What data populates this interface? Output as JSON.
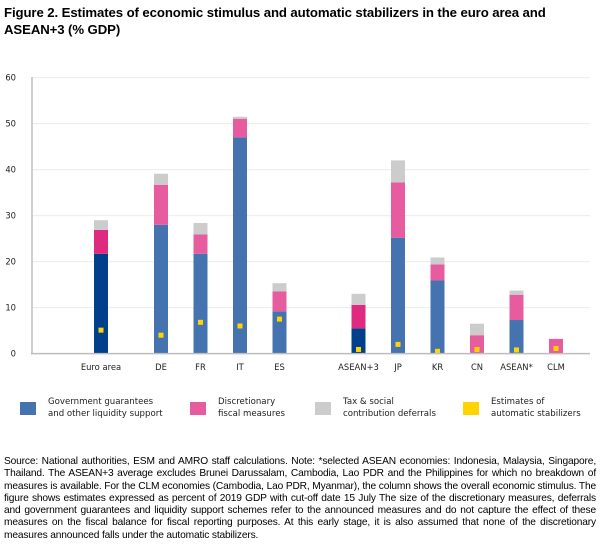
{
  "figure": {
    "title": "Figure 2. Estimates of economic stimulus and automatic stabilizers in the euro area and ASEAN+3 (% GDP)",
    "note": "Source: National authorities, ESM and AMRO staff calculations. Note: *selected ASEAN economies: Indonesia, Malaysia, Singapore, Thailand. The ASEAN+3 average excludes Brunei Darussalam, Cambodia, Lao PDR and the Philippines for which no breakdown of measures is available. For the CLM economies (Cambodia, Lao PDR, Myanmar), the column shows the overall economic stimulus. The figure shows estimates expressed as percent of 2019 GDP with cut-off date 15 July The size of the discretionary measures, deferrals and government guarantees and liquidity support schemes refer to the announced measures and do not capture the effect of these measures on the fiscal balance for fiscal reporting purposes. At this early stage, it is also assumed that none of the discretionary measures announced falls under the automatic stabilizers."
  },
  "colors": {
    "guarantees": "#4473b0",
    "guarantees_aggregate": "#003f8c",
    "discretionary": "#e65c9f",
    "discretionary_aggregate": "#de2b80",
    "deferrals": "#cccccc",
    "stabilizers": "#ffd400"
  },
  "chart_data": {
    "type": "bar",
    "stacked": true,
    "title": "Estimates of economic stimulus and automatic stabilizers in the euro area and ASEAN+3 (% GDP)",
    "xlabel": "",
    "ylabel": "",
    "ylim": [
      0,
      60
    ],
    "yticks": [
      0,
      10,
      20,
      30,
      40,
      50,
      60
    ],
    "grid": true,
    "legend_position": "bottom",
    "categories": [
      "Euro area",
      "DE",
      "FR",
      "IT",
      "ES",
      "ASEAN+3",
      "JP",
      "KR",
      "CN",
      "ASEAN*",
      "CLM"
    ],
    "aggregate_categories": [
      "Euro area",
      "ASEAN+3"
    ],
    "group_gap_after": [
      "ES"
    ],
    "series": [
      {
        "name": "Government guarantees and other liquidity support",
        "legend_label": "Government guarantees\nand other liquidity support",
        "kind": "stack",
        "color_key": "guarantees",
        "values": [
          21.7,
          28.0,
          21.7,
          47.0,
          9.2,
          5.5,
          25.2,
          15.9,
          0.2,
          7.3,
          0
        ]
      },
      {
        "name": "Discretionary fiscal measures",
        "legend_label": "Discretionary\nfiscal measures",
        "kind": "stack",
        "color_key": "discretionary",
        "values": [
          5.2,
          8.7,
          4.2,
          4.0,
          4.3,
          5.1,
          12.0,
          3.5,
          3.8,
          5.5,
          3.2
        ]
      },
      {
        "name": "Tax & social contribution deferrals",
        "legend_label": "Tax & social\ncontribution deferrals",
        "kind": "stack",
        "color_key": "deferrals",
        "values": [
          2.1,
          2.4,
          2.5,
          0.5,
          1.8,
          2.4,
          4.8,
          1.5,
          2.5,
          0.9,
          0
        ]
      },
      {
        "name": "Estimates of automatic stabilizers",
        "legend_label": "Estimates of\nautomatic stabilizers",
        "kind": "marker",
        "color_key": "stabilizers",
        "values": [
          5.1,
          4.0,
          6.8,
          6.0,
          7.5,
          0.9,
          2.0,
          0.5,
          0.9,
          0.8,
          1.1
        ]
      }
    ]
  }
}
